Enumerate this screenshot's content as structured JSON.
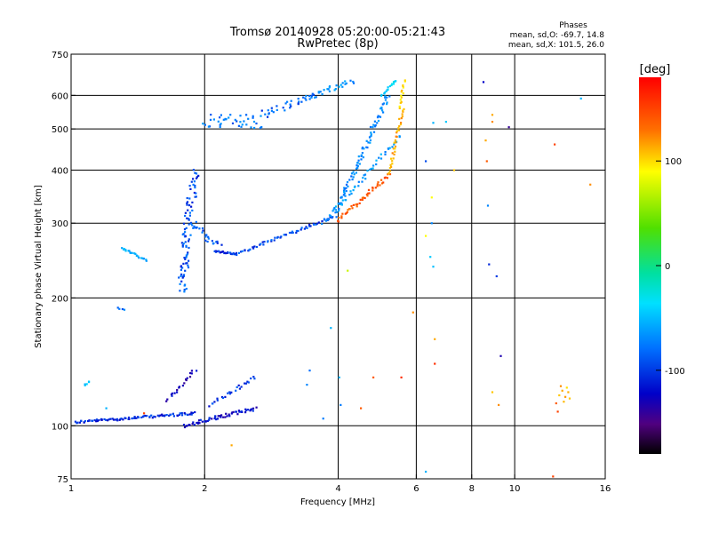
{
  "chart_data": {
    "type": "scatter",
    "title": "Tromsø 20140928 05:20:00-05:21:43",
    "subtitle": "RwPretec (8p)",
    "xlabel": "Frequency [MHz]",
    "ylabel": "Stationary phase Virtual Height [km]",
    "x_scale": "log",
    "y_scale": "log",
    "xlim": [
      1,
      16
    ],
    "ylim": [
      75,
      750
    ],
    "x_ticks": [
      1,
      2,
      4,
      6,
      8,
      10,
      16
    ],
    "x_tick_labels": [
      "1",
      "2",
      "4",
      "6",
      "8",
      "10",
      "16"
    ],
    "y_ticks": [
      75,
      100,
      200,
      300,
      400,
      500,
      600,
      750
    ],
    "y_tick_labels": [
      "75",
      "100",
      "200",
      "300",
      "400",
      "500",
      "600",
      "750"
    ],
    "x_gridlines": [
      2,
      4,
      6,
      8,
      10
    ],
    "y_gridlines": [
      100,
      200,
      300,
      400,
      500,
      600
    ],
    "grid": true,
    "stats": {
      "header": "Phases",
      "line1": "mean, sd,O: -69.7, 14.8",
      "line2": "mean, sd,X: 101.5, 26.0"
    },
    "colorbar": {
      "label": "[deg]",
      "range": [
        -180,
        180
      ],
      "ticks": [
        100,
        0,
        -100
      ],
      "tick_labels": [
        "100",
        "0",
        "-100"
      ]
    },
    "traces": [
      {
        "x0": 1.02,
        "x1": 1.9,
        "y0": 102,
        "y1": 107,
        "phase": -110,
        "spread": 3,
        "n": 90
      },
      {
        "x0": 1.8,
        "x1": 2.6,
        "y0": 100,
        "y1": 110,
        "phase": -120,
        "spread": 4,
        "n": 60
      },
      {
        "x0": 1.65,
        "x1": 1.9,
        "y0": 115,
        "y1": 135,
        "phase": -125,
        "spread": 4,
        "n": 20
      },
      {
        "x0": 2.05,
        "x1": 2.6,
        "y0": 112,
        "y1": 130,
        "phase": -105,
        "spread": 4,
        "n": 25
      },
      {
        "x0": 1.07,
        "x1": 1.1,
        "y0": 125,
        "y1": 127,
        "phase": -60,
        "spread": 2,
        "n": 5
      },
      {
        "x0": 1.27,
        "x1": 1.32,
        "y0": 190,
        "y1": 188,
        "phase": -90,
        "spread": 2,
        "n": 4
      },
      {
        "x0": 1.3,
        "x1": 1.48,
        "y0": 262,
        "y1": 245,
        "phase": -65,
        "spread": 2,
        "n": 22
      },
      {
        "x0": 1.78,
        "x1": 1.83,
        "y0": 208,
        "y1": 280,
        "phase": -95,
        "spread": 10,
        "n": 45
      },
      {
        "x0": 1.82,
        "x1": 1.9,
        "y0": 280,
        "y1": 400,
        "phase": -100,
        "spread": 10,
        "n": 45
      },
      {
        "x0": 1.87,
        "x1": 2.15,
        "y0": 300,
        "y1": 265,
        "phase": -95,
        "spread": 8,
        "n": 25
      },
      {
        "x0": 2.1,
        "x1": 2.35,
        "y0": 258,
        "y1": 254,
        "phase": -105,
        "spread": 2,
        "n": 25
      },
      {
        "x0": 2.35,
        "x1": 3.9,
        "y0": 254,
        "y1": 310,
        "phase": -100,
        "spread": 3,
        "n": 60
      },
      {
        "x0": 3.9,
        "x1": 5.2,
        "y0": 310,
        "y1": 600,
        "phase": -80,
        "spread": 6,
        "n": 90
      },
      {
        "x0": 3.7,
        "x1": 5.5,
        "y0": 300,
        "y1": 480,
        "phase": -70,
        "spread": 4,
        "n": 50
      },
      {
        "x0": 5.0,
        "x1": 5.4,
        "y0": 600,
        "y1": 650,
        "phase": -45,
        "spread": 2,
        "n": 15
      },
      {
        "x0": 4.0,
        "x1": 5.2,
        "y0": 305,
        "y1": 390,
        "phase": 140,
        "spread": 4,
        "n": 45
      },
      {
        "x0": 5.2,
        "x1": 5.6,
        "y0": 390,
        "y1": 560,
        "phase": 110,
        "spread": 3,
        "n": 35
      },
      {
        "x0": 5.5,
        "x1": 5.65,
        "y0": 560,
        "y1": 650,
        "phase": 95,
        "spread": 3,
        "n": 15
      },
      {
        "x0": 2.0,
        "x1": 2.7,
        "y0": 525,
        "y1": 520,
        "phase": -85,
        "spread": 15,
        "n": 40
      },
      {
        "x0": 2.7,
        "x1": 3.5,
        "y0": 540,
        "y1": 600,
        "phase": -95,
        "spread": 8,
        "n": 30
      },
      {
        "x0": 3.4,
        "x1": 4.3,
        "y0": 590,
        "y1": 650,
        "phase": -75,
        "spread": 6,
        "n": 30
      }
    ],
    "sparse_points": [
      [
        3.45,
        135,
        -90
      ],
      [
        4.05,
        112,
        -85
      ],
      [
        4.02,
        130,
        -60
      ],
      [
        3.7,
        104,
        -85
      ],
      [
        3.85,
        170,
        -60
      ],
      [
        4.2,
        232,
        60
      ],
      [
        4.5,
        110,
        140
      ],
      [
        4.8,
        130,
        140
      ],
      [
        5.55,
        130,
        160
      ],
      [
        5.9,
        185,
        120
      ],
      [
        6.3,
        280,
        80
      ],
      [
        6.45,
        250,
        -50
      ],
      [
        6.5,
        300,
        -80
      ],
      [
        6.55,
        237,
        -55
      ],
      [
        6.6,
        160,
        110
      ],
      [
        6.3,
        420,
        -100
      ],
      [
        6.5,
        345,
        80
      ],
      [
        6.55,
        517,
        -60
      ],
      [
        7.0,
        520,
        -50
      ],
      [
        7.3,
        400,
        100
      ],
      [
        6.3,
        78,
        -60
      ],
      [
        8.5,
        645,
        -120
      ],
      [
        8.6,
        470,
        110
      ],
      [
        8.65,
        420,
        140
      ],
      [
        8.9,
        520,
        120
      ],
      [
        8.9,
        540,
        110
      ],
      [
        8.7,
        330,
        -80
      ],
      [
        8.75,
        240,
        -110
      ],
      [
        9.1,
        225,
        -105
      ],
      [
        9.3,
        146,
        -130
      ],
      [
        8.9,
        120,
        100
      ],
      [
        9.2,
        112,
        120
      ],
      [
        9.7,
        505,
        -140
      ],
      [
        12.2,
        76,
        150
      ],
      [
        12.3,
        460,
        150
      ],
      [
        14.1,
        590,
        -60
      ],
      [
        14.8,
        370,
        120
      ],
      [
        6.6,
        140,
        160
      ],
      [
        3.4,
        125,
        -80
      ],
      [
        2.3,
        90,
        110
      ],
      [
        1.46,
        107,
        150
      ],
      [
        1.2,
        110,
        -60
      ]
    ],
    "cluster_points": [
      [
        12.6,
        118,
        100
      ],
      [
        12.8,
        121,
        110
      ],
      [
        13.0,
        117,
        115
      ],
      [
        12.9,
        114,
        105
      ],
      [
        13.2,
        120,
        108
      ],
      [
        13.3,
        116,
        100
      ],
      [
        12.7,
        124,
        120
      ],
      [
        13.1,
        123,
        90
      ],
      [
        12.4,
        113,
        140
      ],
      [
        12.5,
        108,
        150
      ]
    ]
  }
}
